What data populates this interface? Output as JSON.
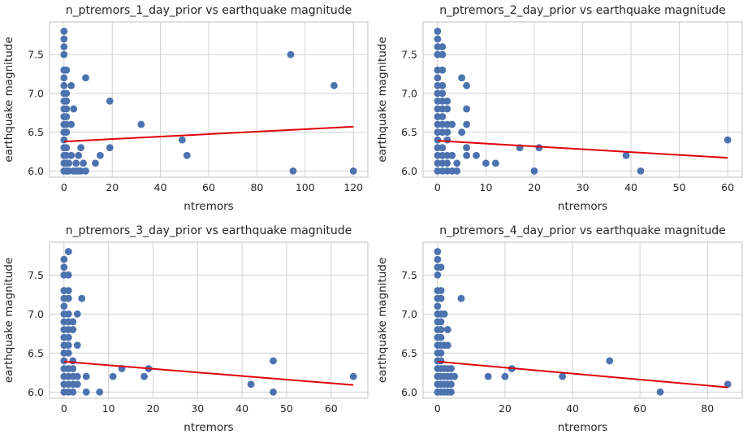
{
  "colors": {
    "points": "#4c72b0",
    "fit_line": "#e0000a",
    "grid": "#d0d0d0"
  },
  "chart_data": [
    {
      "type": "scatter",
      "title": "n_ptremors_1_day_prior vs earthquake magnitude",
      "xlabel": "ntremors",
      "ylabel": "earthquake magnitude",
      "xlim": [
        -6,
        126
      ],
      "ylim": [
        5.92,
        7.92
      ],
      "xticks": [
        0,
        20,
        40,
        60,
        80,
        100,
        120
      ],
      "yticks": [
        6.0,
        6.5,
        7.0,
        7.5
      ],
      "grid": true,
      "fit_line": {
        "x": [
          0,
          120
        ],
        "y": [
          6.38,
          6.57
        ]
      },
      "points": [
        [
          0,
          7.8
        ],
        [
          0,
          7.7
        ],
        [
          0,
          7.6
        ],
        [
          0,
          7.5
        ],
        [
          0,
          7.3
        ],
        [
          1,
          7.3
        ],
        [
          0,
          7.2
        ],
        [
          0,
          7.1
        ],
        [
          0,
          7.0
        ],
        [
          1,
          7.0
        ],
        [
          0,
          6.9
        ],
        [
          1,
          6.9
        ],
        [
          0,
          6.8
        ],
        [
          1,
          6.8
        ],
        [
          0,
          6.7
        ],
        [
          1,
          6.7
        ],
        [
          0,
          6.6
        ],
        [
          1,
          6.6
        ],
        [
          0,
          6.5
        ],
        [
          1,
          6.5
        ],
        [
          0,
          6.4
        ],
        [
          0,
          6.3
        ],
        [
          1,
          6.3
        ],
        [
          0,
          6.2
        ],
        [
          1,
          6.2
        ],
        [
          0,
          6.1
        ],
        [
          1,
          6.1
        ],
        [
          2,
          6.1
        ],
        [
          0,
          6.0
        ],
        [
          1,
          6.0
        ],
        [
          2,
          6.0
        ],
        [
          3,
          7.1
        ],
        [
          3,
          6.6
        ],
        [
          3,
          6.2
        ],
        [
          4,
          6.8
        ],
        [
          4,
          6.0
        ],
        [
          5,
          6.1
        ],
        [
          5,
          6.0
        ],
        [
          6,
          6.2
        ],
        [
          6,
          6.0
        ],
        [
          7,
          6.3
        ],
        [
          7,
          6.0
        ],
        [
          8,
          6.1
        ],
        [
          9,
          7.2
        ],
        [
          9,
          6.0
        ],
        [
          13,
          6.1
        ],
        [
          15,
          6.2
        ],
        [
          19,
          6.9
        ],
        [
          19,
          6.3
        ],
        [
          32,
          6.6
        ],
        [
          49,
          6.4
        ],
        [
          51,
          6.2
        ],
        [
          94,
          7.5
        ],
        [
          95,
          6.0
        ],
        [
          112,
          7.1
        ],
        [
          120,
          6.0
        ]
      ]
    },
    {
      "type": "scatter",
      "title": "n_ptremors_2_day_prior vs earthquake magnitude",
      "xlabel": "ntremors",
      "ylabel": "earthquake magnitude",
      "xlim": [
        -3,
        63
      ],
      "ylim": [
        5.92,
        7.92
      ],
      "xticks": [
        0,
        10,
        20,
        30,
        40,
        50,
        60
      ],
      "yticks": [
        6.0,
        6.5,
        7.0,
        7.5
      ],
      "grid": true,
      "fit_line": {
        "x": [
          0,
          60
        ],
        "y": [
          6.39,
          6.17
        ]
      },
      "points": [
        [
          0,
          7.8
        ],
        [
          0,
          7.7
        ],
        [
          0,
          7.6
        ],
        [
          1,
          7.6
        ],
        [
          0,
          7.5
        ],
        [
          1,
          7.5
        ],
        [
          0,
          7.3
        ],
        [
          1,
          7.3
        ],
        [
          0,
          7.2
        ],
        [
          0,
          7.1
        ],
        [
          1,
          7.1
        ],
        [
          0,
          7.0
        ],
        [
          1,
          7.0
        ],
        [
          0,
          6.9
        ],
        [
          1,
          6.9
        ],
        [
          2,
          6.9
        ],
        [
          0,
          6.8
        ],
        [
          1,
          6.8
        ],
        [
          2,
          6.8
        ],
        [
          0,
          6.7
        ],
        [
          1,
          6.7
        ],
        [
          0,
          6.6
        ],
        [
          1,
          6.6
        ],
        [
          2,
          6.6
        ],
        [
          0,
          6.5
        ],
        [
          1,
          6.5
        ],
        [
          2,
          6.5
        ],
        [
          0,
          6.4
        ],
        [
          2,
          6.4
        ],
        [
          0,
          6.3
        ],
        [
          1,
          6.3
        ],
        [
          0,
          6.2
        ],
        [
          1,
          6.2
        ],
        [
          2,
          6.2
        ],
        [
          3,
          6.2
        ],
        [
          0,
          6.1
        ],
        [
          1,
          6.1
        ],
        [
          2,
          6.1
        ],
        [
          4,
          6.1
        ],
        [
          0,
          6.0
        ],
        [
          1,
          6.0
        ],
        [
          2,
          6.0
        ],
        [
          3,
          6.0
        ],
        [
          4,
          6.0
        ],
        [
          3,
          6.6
        ],
        [
          5,
          7.2
        ],
        [
          5,
          6.5
        ],
        [
          6,
          7.1
        ],
        [
          6,
          6.8
        ],
        [
          6,
          6.6
        ],
        [
          6,
          6.3
        ],
        [
          6,
          6.2
        ],
        [
          8,
          6.2
        ],
        [
          10,
          6.1
        ],
        [
          12,
          6.1
        ],
        [
          17,
          6.3
        ],
        [
          20,
          6.0
        ],
        [
          21,
          6.3
        ],
        [
          39,
          6.2
        ],
        [
          42,
          6.0
        ],
        [
          60,
          6.4
        ]
      ]
    },
    {
      "type": "scatter",
      "title": "n_ptremors_3_day_prior vs earthquake magnitude",
      "xlabel": "ntremors",
      "ylabel": "earthquake magnitude",
      "xlim": [
        -3.25,
        68.25
      ],
      "ylim": [
        5.92,
        7.92
      ],
      "xticks": [
        0,
        10,
        20,
        30,
        40,
        50,
        60
      ],
      "yticks": [
        6.0,
        6.5,
        7.0,
        7.5
      ],
      "grid": true,
      "fit_line": {
        "x": [
          0,
          65
        ],
        "y": [
          6.39,
          6.09
        ]
      },
      "points": [
        [
          0,
          7.7
        ],
        [
          0,
          7.6
        ],
        [
          0,
          7.5
        ],
        [
          1,
          7.8
        ],
        [
          1,
          7.5
        ],
        [
          0,
          7.3
        ],
        [
          1,
          7.3
        ],
        [
          0,
          7.2
        ],
        [
          1,
          7.2
        ],
        [
          0,
          7.1
        ],
        [
          0,
          7.0
        ],
        [
          1,
          7.0
        ],
        [
          0,
          6.9
        ],
        [
          1,
          6.9
        ],
        [
          2,
          6.9
        ],
        [
          0,
          6.8
        ],
        [
          1,
          6.8
        ],
        [
          2,
          6.8
        ],
        [
          0,
          6.7
        ],
        [
          1,
          6.7
        ],
        [
          0,
          6.6
        ],
        [
          1,
          6.6
        ],
        [
          0,
          6.5
        ],
        [
          1,
          6.5
        ],
        [
          0,
          6.4
        ],
        [
          2,
          6.4
        ],
        [
          0,
          6.3
        ],
        [
          1,
          6.3
        ],
        [
          2,
          6.3
        ],
        [
          0,
          6.2
        ],
        [
          1,
          6.2
        ],
        [
          2,
          6.2
        ],
        [
          3,
          6.2
        ],
        [
          0,
          6.1
        ],
        [
          1,
          6.1
        ],
        [
          2,
          6.1
        ],
        [
          3,
          6.1
        ],
        [
          0,
          6.0
        ],
        [
          1,
          6.0
        ],
        [
          2,
          6.0
        ],
        [
          3,
          7.0
        ],
        [
          3,
          6.6
        ],
        [
          4,
          7.2
        ],
        [
          5,
          6.2
        ],
        [
          5,
          6.0
        ],
        [
          8,
          6.0
        ],
        [
          11,
          6.2
        ],
        [
          13,
          6.3
        ],
        [
          18,
          6.2
        ],
        [
          19,
          6.3
        ],
        [
          42,
          6.1
        ],
        [
          47,
          6.4
        ],
        [
          47,
          6.0
        ],
        [
          65,
          6.2
        ]
      ]
    },
    {
      "type": "scatter",
      "title": "n_ptremors_4_day_prior vs earthquake magnitude",
      "xlabel": "ntremors",
      "ylabel": "earthquake magnitude",
      "xlim": [
        -4.3,
        90.3
      ],
      "ylim": [
        5.92,
        7.92
      ],
      "xticks": [
        0,
        20,
        40,
        60,
        80
      ],
      "yticks": [
        6.0,
        6.5,
        7.0,
        7.5
      ],
      "grid": true,
      "fit_line": {
        "x": [
          0,
          86
        ],
        "y": [
          6.39,
          6.06
        ]
      },
      "points": [
        [
          0,
          7.8
        ],
        [
          0,
          7.7
        ],
        [
          0,
          7.6
        ],
        [
          1,
          7.6
        ],
        [
          0,
          7.5
        ],
        [
          0,
          7.3
        ],
        [
          1,
          7.3
        ],
        [
          0,
          7.2
        ],
        [
          1,
          7.2
        ],
        [
          0,
          7.1
        ],
        [
          0,
          7.0
        ],
        [
          1,
          7.0
        ],
        [
          2,
          7.0
        ],
        [
          0,
          6.9
        ],
        [
          1,
          6.9
        ],
        [
          0,
          6.8
        ],
        [
          1,
          6.8
        ],
        [
          3,
          6.8
        ],
        [
          0,
          6.7
        ],
        [
          1,
          6.7
        ],
        [
          0,
          6.6
        ],
        [
          1,
          6.6
        ],
        [
          2,
          6.6
        ],
        [
          3,
          6.6
        ],
        [
          0,
          6.5
        ],
        [
          1,
          6.5
        ],
        [
          0,
          6.4
        ],
        [
          1,
          6.4
        ],
        [
          0,
          6.3
        ],
        [
          1,
          6.3
        ],
        [
          2,
          6.3
        ],
        [
          3,
          6.3
        ],
        [
          4,
          6.3
        ],
        [
          0,
          6.2
        ],
        [
          1,
          6.2
        ],
        [
          2,
          6.2
        ],
        [
          3,
          6.2
        ],
        [
          4,
          6.2
        ],
        [
          5,
          6.2
        ],
        [
          0,
          6.1
        ],
        [
          1,
          6.1
        ],
        [
          2,
          6.1
        ],
        [
          3,
          6.1
        ],
        [
          4,
          6.1
        ],
        [
          0,
          6.0
        ],
        [
          1,
          6.0
        ],
        [
          2,
          6.0
        ],
        [
          3,
          6.0
        ],
        [
          4,
          6.0
        ],
        [
          7,
          7.2
        ],
        [
          15,
          6.2
        ],
        [
          20,
          6.2
        ],
        [
          22,
          6.3
        ],
        [
          37,
          6.2
        ],
        [
          51,
          6.4
        ],
        [
          66,
          6.0
        ],
        [
          86,
          6.1
        ]
      ]
    }
  ]
}
